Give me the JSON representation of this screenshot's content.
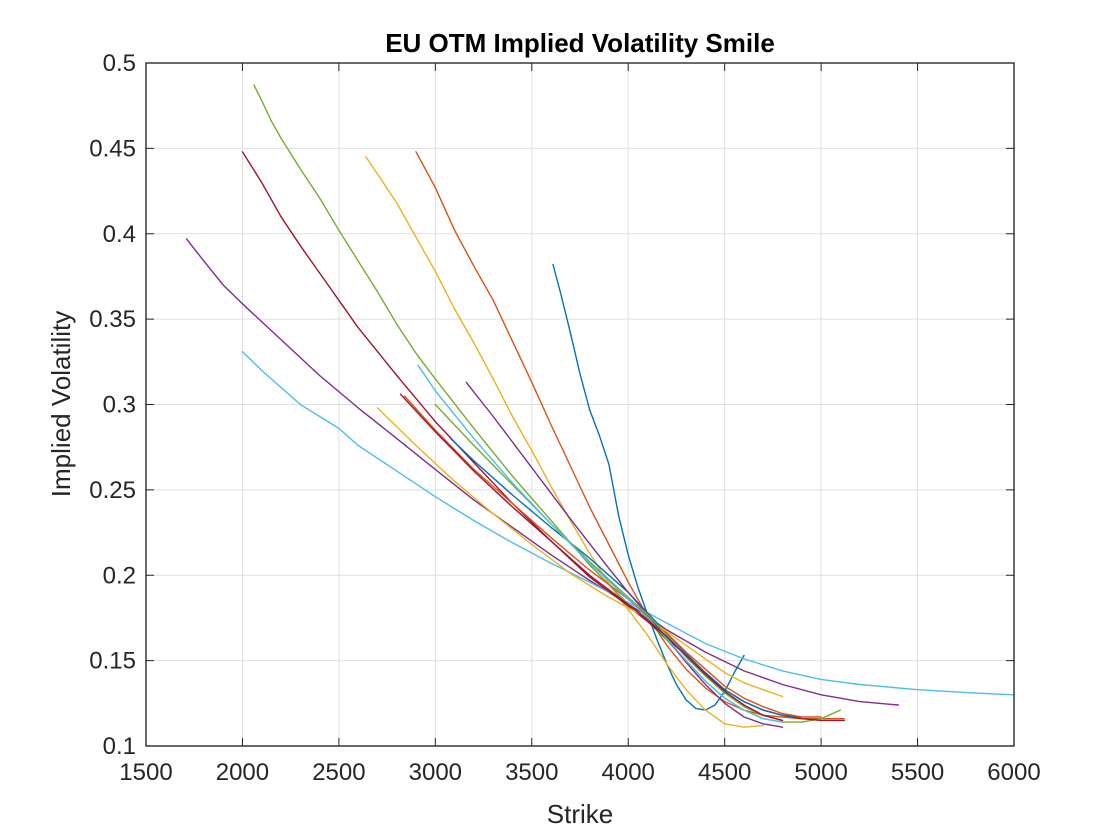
{
  "chart_data": {
    "type": "line",
    "title": "EU OTM Implied Volatility Smile",
    "xlabel": "Strike",
    "ylabel": "Implied Volatility",
    "xlim": [
      1500,
      6000
    ],
    "ylim": [
      0.1,
      0.5
    ],
    "xticks": [
      1500,
      2000,
      2500,
      3000,
      3500,
      4000,
      4500,
      5000,
      5500,
      6000
    ],
    "yticks": [
      0.1,
      0.15,
      0.2,
      0.25,
      0.3,
      0.35,
      0.4,
      0.45,
      0.5
    ],
    "xtick_labels": [
      "1500",
      "2000",
      "2500",
      "3000",
      "3500",
      "4000",
      "4500",
      "5000",
      "5500",
      "6000"
    ],
    "ytick_labels": [
      "0.1",
      "0.15",
      "0.2",
      "0.25",
      "0.3",
      "0.35",
      "0.4",
      "0.45",
      "0.5"
    ],
    "grid": true,
    "series": [
      {
        "color": "#0072BD",
        "x": [
          3610,
          3650,
          3700,
          3750,
          3800,
          3850,
          3900,
          3950,
          4000,
          4050,
          4100,
          4150,
          4200,
          4250,
          4300,
          4350,
          4400,
          4450,
          4500,
          4550,
          4600
        ],
        "y": [
          0.382,
          0.365,
          0.342,
          0.318,
          0.297,
          0.282,
          0.265,
          0.235,
          0.212,
          0.193,
          0.177,
          0.162,
          0.148,
          0.136,
          0.127,
          0.122,
          0.121,
          0.124,
          0.132,
          0.143,
          0.153
        ]
      },
      {
        "color": "#D95319",
        "x": [
          2900,
          3000,
          3100,
          3200,
          3300,
          3400,
          3500,
          3600,
          3700,
          3800,
          3900,
          4000,
          4100,
          4200,
          4300,
          4400,
          4500,
          4600,
          4700,
          4800,
          4900,
          5000,
          5120
        ],
        "y": [
          0.448,
          0.427,
          0.402,
          0.381,
          0.361,
          0.337,
          0.313,
          0.288,
          0.264,
          0.24,
          0.218,
          0.196,
          0.176,
          0.159,
          0.145,
          0.134,
          0.126,
          0.121,
          0.118,
          0.117,
          0.116,
          0.116,
          0.116
        ]
      },
      {
        "color": "#EDB120",
        "x": [
          2640,
          2700,
          2800,
          2900,
          3000,
          3100,
          3200,
          3300,
          3400,
          3500,
          3600,
          3700,
          3800,
          3900,
          4000,
          4100,
          4200,
          4300,
          4400,
          4500,
          4600,
          4700
        ],
        "y": [
          0.445,
          0.435,
          0.418,
          0.398,
          0.378,
          0.356,
          0.336,
          0.315,
          0.293,
          0.273,
          0.252,
          0.232,
          0.213,
          0.195,
          0.18,
          0.165,
          0.148,
          0.133,
          0.121,
          0.113,
          0.111,
          0.112
        ]
      },
      {
        "color": "#7E2F8E",
        "x": [
          1710,
          1800,
          1900,
          2000,
          2200,
          2400,
          2600,
          2800,
          3000,
          3200,
          3400,
          3600,
          3800,
          4000,
          4100,
          4200,
          4400,
          4600,
          4800,
          5000,
          5200,
          5400
        ],
        "y": [
          0.397,
          0.384,
          0.37,
          0.359,
          0.338,
          0.317,
          0.298,
          0.28,
          0.262,
          0.244,
          0.228,
          0.212,
          0.197,
          0.183,
          0.176,
          0.168,
          0.155,
          0.144,
          0.136,
          0.13,
          0.126,
          0.124
        ]
      },
      {
        "color": "#77AC30",
        "x": [
          2060,
          2100,
          2150,
          2200,
          2300,
          2400,
          2500,
          2600,
          2700,
          2800,
          2900,
          3000,
          3200,
          3400,
          3600,
          3800,
          4000,
          4100,
          4200,
          4300,
          4400,
          4500,
          4600,
          4700,
          4800,
          4900,
          5000,
          5100
        ],
        "y": [
          0.487,
          0.478,
          0.466,
          0.456,
          0.438,
          0.421,
          0.402,
          0.384,
          0.366,
          0.347,
          0.33,
          0.315,
          0.286,
          0.258,
          0.232,
          0.206,
          0.183,
          0.173,
          0.162,
          0.15,
          0.138,
          0.128,
          0.121,
          0.116,
          0.114,
          0.114,
          0.116,
          0.121
        ]
      },
      {
        "color": "#4DBEEE",
        "x": [
          2000,
          2100,
          2200,
          2300,
          2400,
          2500,
          2600,
          2800,
          3000,
          3200,
          3400,
          3600,
          3800,
          4000,
          4100,
          4200,
          4400,
          4600,
          4800,
          5000,
          5200,
          5500,
          5800,
          6000
        ],
        "y": [
          0.331,
          0.32,
          0.31,
          0.3,
          0.293,
          0.286,
          0.276,
          0.261,
          0.246,
          0.232,
          0.219,
          0.207,
          0.196,
          0.184,
          0.178,
          0.172,
          0.16,
          0.151,
          0.144,
          0.139,
          0.136,
          0.133,
          0.131,
          0.13
        ]
      },
      {
        "color": "#A2142F",
        "x": [
          2000,
          2100,
          2200,
          2300,
          2400,
          2500,
          2600,
          2700,
          2800,
          3000,
          3200,
          3400,
          3600,
          3800,
          4000,
          4100,
          4200,
          4300,
          4400,
          4500,
          4600,
          4700,
          4800,
          4900,
          5000,
          5120
        ],
        "y": [
          0.448,
          0.43,
          0.41,
          0.393,
          0.377,
          0.361,
          0.345,
          0.331,
          0.317,
          0.29,
          0.266,
          0.242,
          0.22,
          0.199,
          0.182,
          0.173,
          0.163,
          0.153,
          0.143,
          0.133,
          0.126,
          0.121,
          0.118,
          0.116,
          0.115,
          0.115
        ]
      },
      {
        "color": "#0072BD",
        "x": [
          3080,
          3200,
          3400,
          3600,
          3800,
          4000,
          4100,
          4200,
          4300,
          4400,
          4500,
          4600,
          4700,
          4800,
          4900
        ],
        "y": [
          0.28,
          0.267,
          0.247,
          0.228,
          0.21,
          0.19,
          0.178,
          0.166,
          0.154,
          0.143,
          0.133,
          0.126,
          0.121,
          0.118,
          0.117
        ]
      },
      {
        "color": "#D95319",
        "x": [
          2840,
          3000,
          3200,
          3400,
          3600,
          3800,
          4000,
          4100,
          4200,
          4300,
          4400,
          4500,
          4600,
          4700,
          4800,
          4900,
          5000
        ],
        "y": [
          0.305,
          0.285,
          0.262,
          0.242,
          0.222,
          0.203,
          0.186,
          0.176,
          0.166,
          0.155,
          0.145,
          0.135,
          0.128,
          0.123,
          0.119,
          0.117,
          0.117
        ]
      },
      {
        "color": "#EDB120",
        "x": [
          2700,
          2900,
          3100,
          3300,
          3500,
          3700,
          3900,
          4000,
          4100,
          4200,
          4300,
          4400,
          4500,
          4600,
          4700,
          4800
        ],
        "y": [
          0.298,
          0.276,
          0.255,
          0.236,
          0.218,
          0.201,
          0.187,
          0.181,
          0.175,
          0.167,
          0.159,
          0.151,
          0.143,
          0.137,
          0.133,
          0.129
        ]
      },
      {
        "color": "#7E2F8E",
        "x": [
          3160,
          3300,
          3500,
          3700,
          3900,
          4000,
          4100,
          4200,
          4300,
          4400,
          4500,
          4600,
          4700,
          4800
        ],
        "y": [
          0.313,
          0.293,
          0.263,
          0.233,
          0.204,
          0.19,
          0.177,
          0.163,
          0.149,
          0.136,
          0.125,
          0.117,
          0.113,
          0.111
        ]
      },
      {
        "color": "#77AC30",
        "x": [
          3000,
          3200,
          3400,
          3600,
          3800,
          4000,
          4100,
          4200,
          4300,
          4400,
          4500,
          4600,
          4700,
          4800
        ],
        "y": [
          0.3,
          0.276,
          0.253,
          0.23,
          0.208,
          0.187,
          0.177,
          0.165,
          0.152,
          0.141,
          0.131,
          0.123,
          0.118,
          0.115
        ]
      },
      {
        "color": "#4DBEEE",
        "x": [
          2910,
          3000,
          3200,
          3400,
          3600,
          3800,
          4000,
          4100,
          4200,
          4300,
          4400,
          4500,
          4600,
          4700,
          4800
        ],
        "y": [
          0.323,
          0.308,
          0.28,
          0.254,
          0.23,
          0.207,
          0.186,
          0.175,
          0.163,
          0.15,
          0.138,
          0.128,
          0.121,
          0.116,
          0.114
        ]
      },
      {
        "color": "#A2142F",
        "x": [
          2820,
          3000,
          3200,
          3400,
          3600,
          3800,
          4000,
          4100,
          4200,
          4300,
          4400,
          4500,
          4600,
          4700,
          4800
        ],
        "y": [
          0.306,
          0.284,
          0.261,
          0.24,
          0.22,
          0.2,
          0.183,
          0.174,
          0.164,
          0.153,
          0.142,
          0.132,
          0.124,
          0.118,
          0.115
        ]
      }
    ]
  }
}
